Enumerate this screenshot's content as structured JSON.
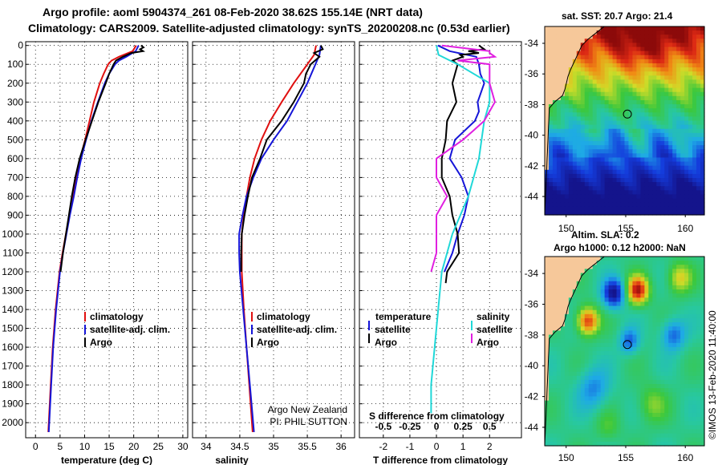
{
  "title": {
    "line1": "Argo profile: aoml 5904374_261 08-Feb-2020 38.62S 155.14E (NRT data)",
    "line2": "Climatology: CARS2009. Satellite-adjusted climatology: synTS_20200208.nc (0.53d earlier)"
  },
  "colors": {
    "climatology": "#e01010",
    "satellite": "#1515d8",
    "argo": "#000000",
    "sat_salinity": "#20d8d8",
    "argo_salinity_diff": "#e020e0"
  },
  "depth_ticks": [
    "0",
    "100",
    "200",
    "300",
    "400",
    "500",
    "600",
    "700",
    "800",
    "900",
    "1000",
    "1100",
    "1200",
    "1300",
    "1400",
    "1500",
    "1600",
    "1700",
    "1800",
    "1900",
    "2000"
  ],
  "chart_data": [
    {
      "type": "line",
      "name": "temperature",
      "xlabel": "temperature (deg C)",
      "xlim": [
        -2,
        31
      ],
      "ylim": [
        2080,
        -20
      ],
      "xticks": [
        "0",
        "5",
        "10",
        "15",
        "20",
        "25",
        "30"
      ],
      "legend": [
        "climatology",
        "satellite-adj. clim.",
        "Argo"
      ],
      "series": [
        {
          "name": "climatology",
          "depth": [
            0,
            30,
            60,
            80,
            100,
            150,
            200,
            300,
            400,
            500,
            600,
            700,
            800,
            900,
            1000,
            1100,
            1200,
            1400,
            1600,
            1800,
            2050
          ],
          "values": [
            20.5,
            19.8,
            17.0,
            15.5,
            14.8,
            13.9,
            13.1,
            11.9,
            11.0,
            10.1,
            9.1,
            8.3,
            7.6,
            6.9,
            6.2,
            5.5,
            4.9,
            4.1,
            3.5,
            3.1,
            2.6
          ]
        },
        {
          "name": "satellite-adj. clim.",
          "depth": [
            0,
            30,
            60,
            80,
            100,
            150,
            200,
            300,
            400,
            500,
            600,
            700,
            800,
            900,
            1000,
            1100,
            1200,
            1400,
            1600,
            1800,
            2050
          ],
          "values": [
            21.0,
            20.4,
            18.5,
            17.0,
            16.2,
            15.0,
            14.1,
            12.7,
            11.4,
            10.3,
            9.3,
            8.5,
            7.8,
            7.0,
            6.3,
            5.6,
            5.0,
            4.2,
            3.6,
            3.2,
            2.7
          ]
        },
        {
          "name": "Argo",
          "depth": [
            0,
            10,
            20,
            30,
            40,
            60,
            80,
            100,
            150,
            200,
            300,
            400,
            500,
            600,
            700,
            800,
            900,
            1000,
            1100,
            1200
          ],
          "values": [
            21.5,
            22.0,
            21.3,
            21.9,
            19.5,
            17.8,
            16.4,
            15.9,
            15.0,
            14.3,
            12.8,
            11.5,
            10.2,
            9.0,
            8.1,
            7.4,
            6.8,
            6.2,
            5.6,
            5.1
          ]
        }
      ]
    },
    {
      "type": "line",
      "name": "salinity",
      "xlabel": "salinity",
      "xlim": [
        33.8,
        36.2
      ],
      "ylim": [
        2080,
        -20
      ],
      "xticks": [
        "34",
        "34.5",
        "35",
        "35.5",
        "36"
      ],
      "legend": [
        "climatology",
        "satellite-adj. clim.",
        "Argo"
      ],
      "series": [
        {
          "name": "climatology",
          "depth": [
            0,
            50,
            100,
            200,
            300,
            400,
            500,
            600,
            700,
            800,
            900,
            1000,
            1200,
            1400,
            1600,
            1800,
            2050
          ],
          "values": [
            35.63,
            35.6,
            35.5,
            35.3,
            35.12,
            34.95,
            34.82,
            34.72,
            34.65,
            34.6,
            34.56,
            34.53,
            34.53,
            34.56,
            34.6,
            34.64,
            34.69
          ]
        },
        {
          "name": "satellite-adj. clim.",
          "depth": [
            0,
            50,
            100,
            200,
            300,
            400,
            500,
            600,
            700,
            800,
            900,
            1000,
            1100,
            1200,
            1400,
            1600,
            1800,
            2050
          ],
          "values": [
            35.7,
            35.68,
            35.62,
            35.5,
            35.35,
            35.2,
            35.0,
            34.82,
            34.7,
            34.6,
            34.54,
            34.49,
            34.49,
            34.5,
            34.55,
            34.6,
            34.65,
            34.71
          ]
        },
        {
          "name": "Argo",
          "depth": [
            0,
            20,
            40,
            60,
            100,
            150,
            200,
            300,
            400,
            500,
            600,
            700,
            800,
            900,
            1000,
            1100,
            1200
          ],
          "values": [
            35.7,
            35.73,
            35.6,
            35.68,
            35.55,
            35.48,
            35.45,
            35.3,
            35.12,
            34.9,
            34.8,
            34.68,
            34.62,
            34.57,
            34.53,
            34.52,
            34.52
          ]
        }
      ],
      "annotation": [
        "Argo New Zealand",
        "PI: PHIL SUTTON"
      ]
    },
    {
      "type": "line",
      "name": "difference",
      "xlabel": "T difference from climatology",
      "xlabel_top": "S difference from climatology",
      "xlim": [
        -2.9,
        3.2
      ],
      "ylim": [
        2080,
        -20
      ],
      "xticks": [
        "-2",
        "-1",
        "0",
        "1",
        "2"
      ],
      "xticks_top": [
        "-0.5",
        "-0.25",
        "0",
        "0.25",
        "0.5"
      ],
      "legend_left": [
        "temperature",
        "satellite",
        "Argo"
      ],
      "legend_right": [
        "salinity",
        "satellite",
        "Argo"
      ],
      "series": [
        {
          "name": "temperature satellite",
          "depth": [
            0,
            30,
            60,
            100,
            150,
            200,
            300,
            350,
            400,
            500,
            600,
            700,
            800,
            900,
            1000,
            1100,
            1200
          ],
          "values": [
            0.05,
            0.5,
            1.5,
            1.6,
            1.65,
            1.8,
            1.55,
            1.6,
            1.45,
            0.7,
            0.5,
            0.95,
            1.2,
            1.05,
            0.8,
            0.6,
            0.3
          ]
        },
        {
          "name": "temperature Argo",
          "depth": [
            0,
            20,
            30,
            40,
            50,
            60,
            80,
            100,
            150,
            200,
            300,
            400,
            500,
            600,
            700,
            800,
            900,
            1000,
            1100,
            1200,
            1260
          ],
          "values": [
            1.6,
            1.8,
            1.2,
            1.6,
            0.9,
            1.0,
            0.6,
            0.8,
            0.7,
            0.6,
            0.75,
            0.4,
            0.35,
            0.2,
            0.2,
            0.5,
            0.6,
            0.8,
            0.85,
            0.4,
            0.35
          ]
        },
        {
          "name": "salinity satellite",
          "depth": [
            0,
            50,
            100,
            200,
            300,
            400,
            600,
            800,
            1000,
            1200,
            1500,
            1800,
            1950
          ],
          "values": [
            0.0,
            0.02,
            0.2,
            0.5,
            0.5,
            0.45,
            0.4,
            0.3,
            0.15,
            0.05,
            0.0,
            -0.05,
            -0.05
          ]
        },
        {
          "name": "salinity Argo",
          "depth": [
            0,
            30,
            40,
            60,
            80,
            100,
            150,
            200,
            300,
            400,
            450,
            500,
            600,
            700,
            800,
            900,
            1000,
            1100,
            1200
          ],
          "values": [
            0.05,
            0.5,
            0.5,
            0.55,
            0.2,
            0.5,
            0.5,
            0.5,
            0.55,
            0.45,
            0.35,
            0.25,
            0.0,
            0.0,
            0.1,
            0.0,
            0.0,
            0.0,
            -0.05
          ]
        }
      ]
    }
  ],
  "maps": {
    "sst": {
      "title": "sat. SST: 20.7 Argo: 21.4",
      "yticks": [
        "-34",
        "-36",
        "-38",
        "-40",
        "-42",
        "-44"
      ],
      "xticks": [
        "150",
        "155",
        "160"
      ],
      "float_lon": 155.14,
      "float_lat": -38.62
    },
    "sla": {
      "title1": "Altim. SLA: 0.2",
      "title2": "Argo h1000: 0.12 h2000: NaN",
      "yticks": [
        "-34",
        "-36",
        "-38",
        "-40",
        "-42",
        "-44"
      ],
      "xticks": [
        "150",
        "155",
        "160"
      ],
      "float_lon": 155.14,
      "float_lat": -38.62
    }
  },
  "credit": "©IMOS 13-Feb-2020 11:40:00"
}
